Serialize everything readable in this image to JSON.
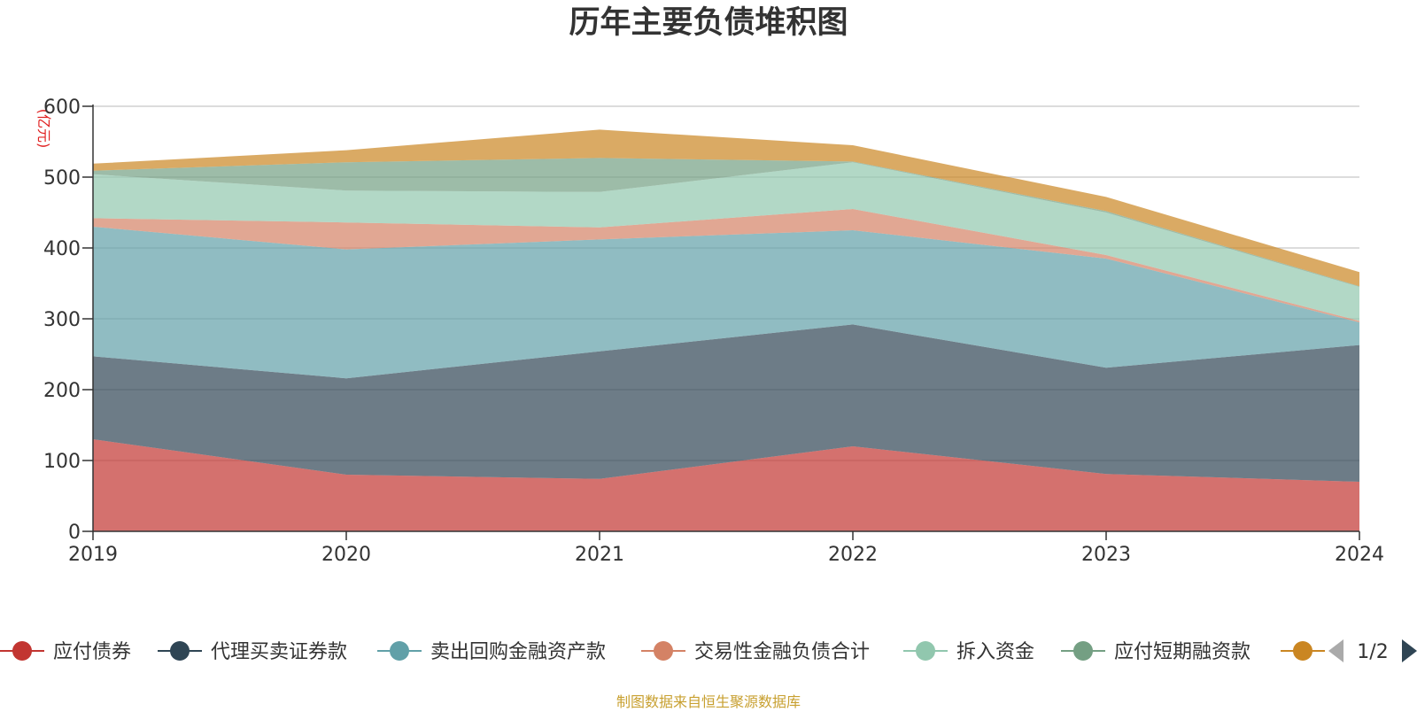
{
  "chart_data": {
    "type": "area",
    "title": "历年主要负债堆积图",
    "unit_label": "(亿元)",
    "ylim": [
      0,
      600
    ],
    "y_ticks": [
      0,
      100,
      200,
      300,
      400,
      500,
      600
    ],
    "grid": true,
    "x": [
      "2019",
      "2020",
      "2021",
      "2022",
      "2023",
      "2024"
    ],
    "series": [
      {
        "name": "应付债券",
        "color": "#c23531",
        "values": [
          130,
          80,
          74,
          120,
          81,
          70
        ]
      },
      {
        "name": "代理买卖证券款",
        "color": "#2f4554",
        "values": [
          117,
          136,
          180,
          172,
          150,
          193
        ]
      },
      {
        "name": "卖出回购金融资产款",
        "color": "#61a0a8",
        "values": [
          183,
          182,
          158,
          133,
          154,
          32
        ]
      },
      {
        "name": "交易性金融负债合计",
        "color": "#d48265",
        "values": [
          12,
          38,
          17,
          30,
          5,
          2
        ]
      },
      {
        "name": "拆入资金",
        "color": "#91c7ae",
        "values": [
          62,
          45,
          50,
          66,
          60,
          48
        ]
      },
      {
        "name": "应付短期融资款",
        "color": "#749f83",
        "values": [
          5,
          40,
          48,
          1,
          2,
          1
        ]
      },
      {
        "name": "",
        "color": "#ca8622",
        "values": [
          10,
          17,
          40,
          23,
          20,
          20
        ]
      }
    ],
    "legend": {
      "position": "bottom",
      "page": "1/2"
    }
  },
  "footer": {
    "source": "制图数据来自恒生聚源数据库"
  }
}
